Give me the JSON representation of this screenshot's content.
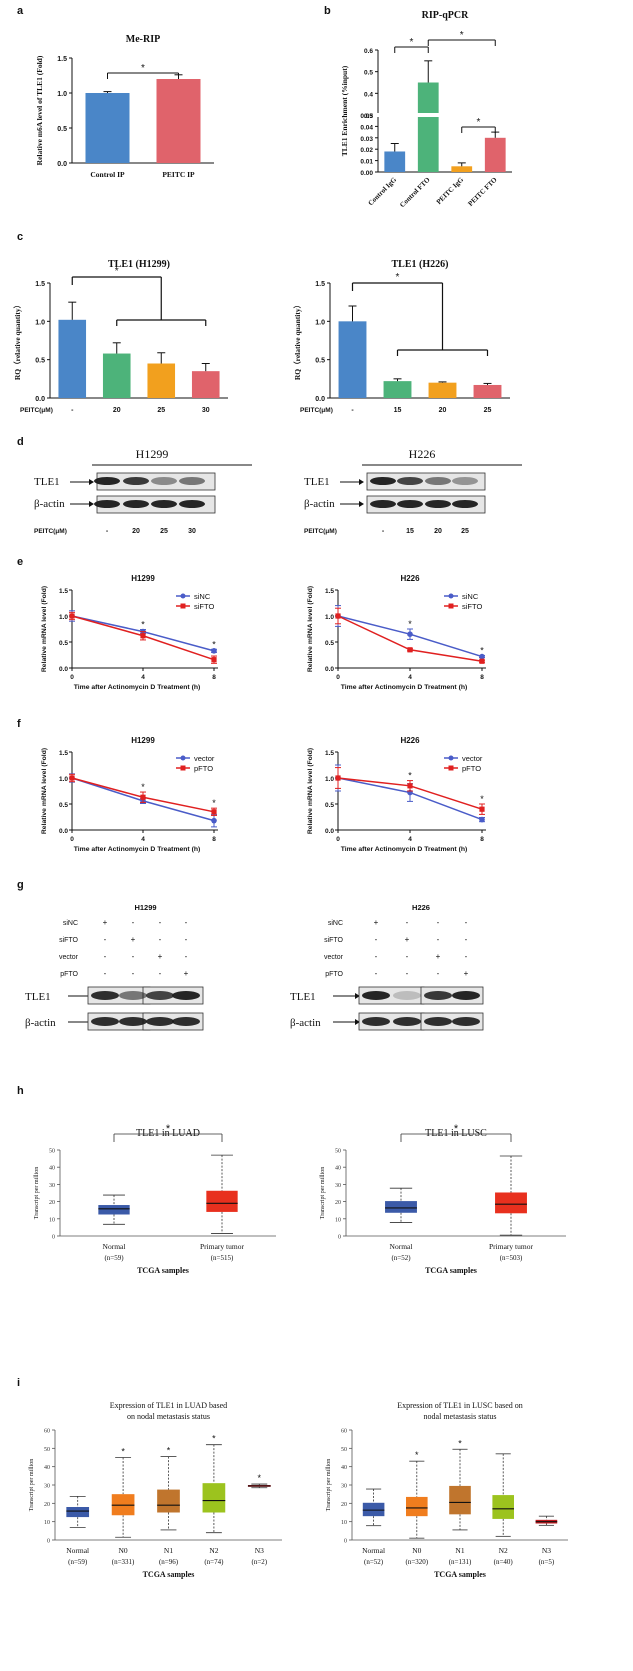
{
  "figure": {
    "panel_labels": [
      "a",
      "b",
      "c",
      "d",
      "e",
      "f",
      "g",
      "h",
      "i"
    ],
    "significance_marker": "*",
    "colors": {
      "blue": "#4a86c8",
      "pink": "#e0636b",
      "green": "#4db37a",
      "orange": "#f2a01e",
      "red_line": "#e02020",
      "blue_line": "#4a5cc8",
      "box_blue": "#3b5aa8",
      "box_red": "#e8301e",
      "box_orange": "#f07d1e",
      "box_brown": "#c0752d",
      "box_lime": "#9cc31e",
      "box_darkred": "#c0181e"
    }
  },
  "blots": {
    "d": {
      "left": {
        "title": "H1299",
        "rows": [
          "TLE1",
          "β-actin"
        ],
        "treatment_label": "PEITC(μM)",
        "lanes": [
          "-",
          "20",
          "25",
          "30"
        ]
      },
      "right": {
        "title": "H226",
        "rows": [
          "TLE1",
          "β-actin"
        ],
        "treatment_label": "PEITC(μM)",
        "lanes": [
          "-",
          "15",
          "20",
          "25"
        ]
      }
    },
    "g": {
      "left": {
        "title": "H1299",
        "conditions": [
          {
            "name": "siNC",
            "marks": [
              "+",
              "-",
              "-",
              "-"
            ]
          },
          {
            "name": "siFTO",
            "marks": [
              "-",
              "+",
              "-",
              "-"
            ]
          },
          {
            "name": "vector",
            "marks": [
              "-",
              "-",
              "+",
              "-"
            ]
          },
          {
            "name": "pFTO",
            "marks": [
              "-",
              "-",
              "-",
              "+"
            ]
          }
        ],
        "rows": [
          "TLE1",
          "β-actin"
        ]
      },
      "right": {
        "title": "H226",
        "conditions": [
          {
            "name": "siNC",
            "marks": [
              "+",
              "-",
              "-",
              "-"
            ]
          },
          {
            "name": "siFTO",
            "marks": [
              "-",
              "+",
              "-",
              "-"
            ]
          },
          {
            "name": "vector",
            "marks": [
              "-",
              "-",
              "+",
              "-"
            ]
          },
          {
            "name": "pFTO",
            "marks": [
              "-",
              "-",
              "-",
              "+"
            ]
          }
        ],
        "rows": [
          "TLE1",
          "β-actin"
        ]
      }
    }
  },
  "chart_data": [
    {
      "id": "a",
      "type": "bar",
      "title": "Me-RIP",
      "ylabel": "Relative m6A level of TLE1 (Fold)",
      "categories": [
        "Control IP",
        "PEITC IP"
      ],
      "values": [
        1.0,
        1.2
      ],
      "errors": [
        0.02,
        0.06
      ],
      "ylim": [
        0,
        1.5
      ],
      "yticks": [
        "0.0",
        "0.5",
        "1.0",
        "1.5"
      ]
    },
    {
      "id": "b",
      "type": "bar",
      "title": "RIP-qPCR",
      "ylabel": "TLE1 Enrichment (%input)",
      "categories": [
        "Control IgG",
        "Control FTO",
        "PEITC IgG",
        "PEITC FTO"
      ],
      "values": [
        0.018,
        0.45,
        0.005,
        0.03
      ],
      "errors": [
        0.007,
        0.1,
        0.003,
        0.005
      ],
      "axis_break": [
        0.05,
        0.3
      ],
      "yticks_lower": [
        "0.00",
        "0.01",
        "0.02",
        "0.03",
        "0.04",
        "0.05"
      ],
      "yticks_upper": [
        "0.3",
        "0.4",
        "0.5",
        "0.6"
      ]
    },
    {
      "id": "c1",
      "type": "bar",
      "title": "TLE1 (H1299)",
      "ylabel": "RQ（relative quantity）",
      "xlabel": "PEITC(μM)",
      "categories": [
        "-",
        "20",
        "25",
        "30"
      ],
      "values": [
        1.02,
        0.58,
        0.45,
        0.35
      ],
      "errors": [
        0.23,
        0.14,
        0.14,
        0.1
      ],
      "ylim": [
        0,
        1.5
      ],
      "yticks": [
        "0.0",
        "0.5",
        "1.0",
        "1.5"
      ]
    },
    {
      "id": "c2",
      "type": "bar",
      "title": "TLE1 (H226)",
      "ylabel": "RQ（relative quantity）",
      "xlabel": "PEITC(μM)",
      "categories": [
        "-",
        "15",
        "20",
        "25"
      ],
      "values": [
        1.0,
        0.22,
        0.2,
        0.17
      ],
      "errors": [
        0.2,
        0.03,
        0.01,
        0.02
      ],
      "ylim": [
        0,
        1.5
      ],
      "yticks": [
        "0.0",
        "0.5",
        "1.0",
        "1.5"
      ]
    },
    {
      "id": "e1",
      "type": "line",
      "title": "H1299",
      "ylabel": "Relative mRNA level (Fold)",
      "xlabel": "Time after Actinomycin D Treatment (h)",
      "x": [
        0,
        4,
        8
      ],
      "xticks": [
        "0",
        "4",
        "8"
      ],
      "ylim": [
        0,
        1.5
      ],
      "yticks": [
        "0.0",
        "0.5",
        "1.0",
        "1.5"
      ],
      "series": [
        {
          "name": "siNC",
          "values": [
            1.0,
            0.7,
            0.33
          ],
          "errors": [
            0.1,
            0.04,
            0.03
          ]
        },
        {
          "name": "siFTO",
          "values": [
            1.0,
            0.62,
            0.16
          ],
          "errors": [
            0.07,
            0.08,
            0.07
          ]
        }
      ]
    },
    {
      "id": "e2",
      "type": "line",
      "title": "H226",
      "ylabel": "Relative mRNA level (Fold)",
      "xlabel": "Time after Actinomycin D Treatment (h)",
      "x": [
        0,
        4,
        8
      ],
      "xticks": [
        "0",
        "4",
        "8"
      ],
      "ylim": [
        0,
        1.5
      ],
      "yticks": [
        "0.0",
        "0.5",
        "1.0",
        "1.5"
      ],
      "series": [
        {
          "name": "siNC",
          "values": [
            1.0,
            0.65,
            0.22
          ],
          "errors": [
            0.2,
            0.1,
            0.02
          ]
        },
        {
          "name": "siFTO",
          "values": [
            1.0,
            0.35,
            0.13
          ],
          "errors": [
            0.15,
            0.02,
            0.02
          ]
        }
      ]
    },
    {
      "id": "f1",
      "type": "line",
      "title": "H1299",
      "ylabel": "Relative mRNA level (Fold)",
      "xlabel": "Time after Actinomycin D Treatment (h)",
      "x": [
        0,
        4,
        8
      ],
      "xticks": [
        "0",
        "4",
        "8"
      ],
      "ylim": [
        0,
        1.5
      ],
      "yticks": [
        "0.0",
        "0.5",
        "1.0",
        "1.5"
      ],
      "series": [
        {
          "name": "vector",
          "values": [
            1.0,
            0.56,
            0.18
          ],
          "errors": [
            0.08,
            0.05,
            0.12
          ]
        },
        {
          "name": "pFTO",
          "values": [
            1.0,
            0.63,
            0.35
          ],
          "errors": [
            0.07,
            0.1,
            0.07
          ]
        }
      ]
    },
    {
      "id": "f2",
      "type": "line",
      "title": "H226",
      "ylabel": "Relative mRNA level (Fold)",
      "xlabel": "Time after Actinomycin D Treatment (h)",
      "x": [
        0,
        4,
        8
      ],
      "xticks": [
        "0",
        "4",
        "8"
      ],
      "ylim": [
        0,
        1.5
      ],
      "yticks": [
        "0.0",
        "0.5",
        "1.0",
        "1.5"
      ],
      "series": [
        {
          "name": "vector",
          "values": [
            1.0,
            0.72,
            0.2
          ],
          "errors": [
            0.25,
            0.17,
            0.04
          ]
        },
        {
          "name": "pFTO",
          "values": [
            1.0,
            0.85,
            0.4
          ],
          "errors": [
            0.2,
            0.1,
            0.1
          ]
        }
      ]
    },
    {
      "id": "h1",
      "type": "box",
      "title": "TLE1 in LUAD",
      "ylabel": "Transcript per million",
      "xlabel": "TCGA samples",
      "ylim": [
        0,
        50
      ],
      "yticks": [
        "0",
        "10",
        "20",
        "30",
        "40",
        "50"
      ],
      "categories": [
        "Normal",
        "Primary tumor"
      ],
      "counts": [
        "(n=59)",
        "(n=515)"
      ],
      "boxes": [
        {
          "min": 6.8,
          "q1": 12.5,
          "median": 15.8,
          "q3": 18.0,
          "max": 23.8
        },
        {
          "min": 1.5,
          "q1": 14.0,
          "median": 19.0,
          "q3": 26.3,
          "max": 47.0
        }
      ]
    },
    {
      "id": "h2",
      "type": "box",
      "title": "TLE1 in LUSC",
      "ylabel": "Transcript per million",
      "xlabel": "TCGA samples",
      "ylim": [
        0,
        50
      ],
      "yticks": [
        "0",
        "10",
        "20",
        "30",
        "40",
        "50"
      ],
      "categories": [
        "Normal",
        "Primary tumor"
      ],
      "counts": [
        "(n=52)",
        "(n=503)"
      ],
      "boxes": [
        {
          "min": 7.8,
          "q1": 13.5,
          "median": 16.3,
          "q3": 20.3,
          "max": 27.8
        },
        {
          "min": 0.5,
          "q1": 13.2,
          "median": 18.5,
          "q3": 25.3,
          "max": 46.5
        }
      ]
    },
    {
      "id": "i1",
      "type": "box",
      "title": "Expression of TLE1 in LUAD based on nodal metastasis status",
      "title_lines": [
        "Expression of TLE1 in LUAD based",
        "on nodal metastasis status"
      ],
      "ylabel": "Transcript per million",
      "xlabel": "TCGA samples",
      "ylim": [
        0,
        60
      ],
      "yticks": [
        "0",
        "10",
        "20",
        "30",
        "40",
        "50",
        "60"
      ],
      "categories": [
        "Normal",
        "N0",
        "N1",
        "N2",
        "N3"
      ],
      "counts": [
        "(n=59)",
        "(n=331)",
        "(n=96)",
        "(n=74)",
        "(n=2)"
      ],
      "boxes": [
        {
          "min": 6.8,
          "q1": 12.5,
          "median": 15.8,
          "q3": 18.0,
          "max": 23.8
        },
        {
          "min": 1.5,
          "q1": 13.5,
          "median": 19.0,
          "q3": 25.0,
          "max": 45.0
        },
        {
          "min": 5.5,
          "q1": 15.0,
          "median": 19.0,
          "q3": 27.5,
          "max": 45.5
        },
        {
          "min": 4.0,
          "q1": 15.0,
          "median": 21.5,
          "q3": 31.0,
          "max": 52.0
        },
        {
          "min": 28.5,
          "q1": 29.0,
          "median": 29.5,
          "q3": 30.0,
          "max": 30.5
        }
      ]
    },
    {
      "id": "i2",
      "type": "box",
      "title": "Expression of TLE1 in LUSC based on nodal metastasis status",
      "title_lines": [
        "Expression of TLE1 in LUSC based on",
        "nodal metastasis status"
      ],
      "ylabel": "Transcript per million",
      "xlabel": "TCGA samples",
      "ylim": [
        0,
        60
      ],
      "yticks": [
        "0",
        "10",
        "20",
        "30",
        "40",
        "50",
        "60"
      ],
      "categories": [
        "Normal",
        "N0",
        "N1",
        "N2",
        "N3"
      ],
      "counts": [
        "(n=52)",
        "(n=320)",
        "(n=131)",
        "(n=40)",
        "(n=5)"
      ],
      "boxes": [
        {
          "min": 7.8,
          "q1": 13.0,
          "median": 16.3,
          "q3": 20.3,
          "max": 27.8
        },
        {
          "min": 1.0,
          "q1": 13.0,
          "median": 17.5,
          "q3": 23.5,
          "max": 43.0
        },
        {
          "min": 5.5,
          "q1": 14.0,
          "median": 20.5,
          "q3": 29.5,
          "max": 49.5
        },
        {
          "min": 2.0,
          "q1": 11.5,
          "median": 17.0,
          "q3": 24.5,
          "max": 47.0
        },
        {
          "min": 8.0,
          "q1": 9.0,
          "median": 10.0,
          "q3": 11.0,
          "max": 13.0
        }
      ]
    }
  ]
}
